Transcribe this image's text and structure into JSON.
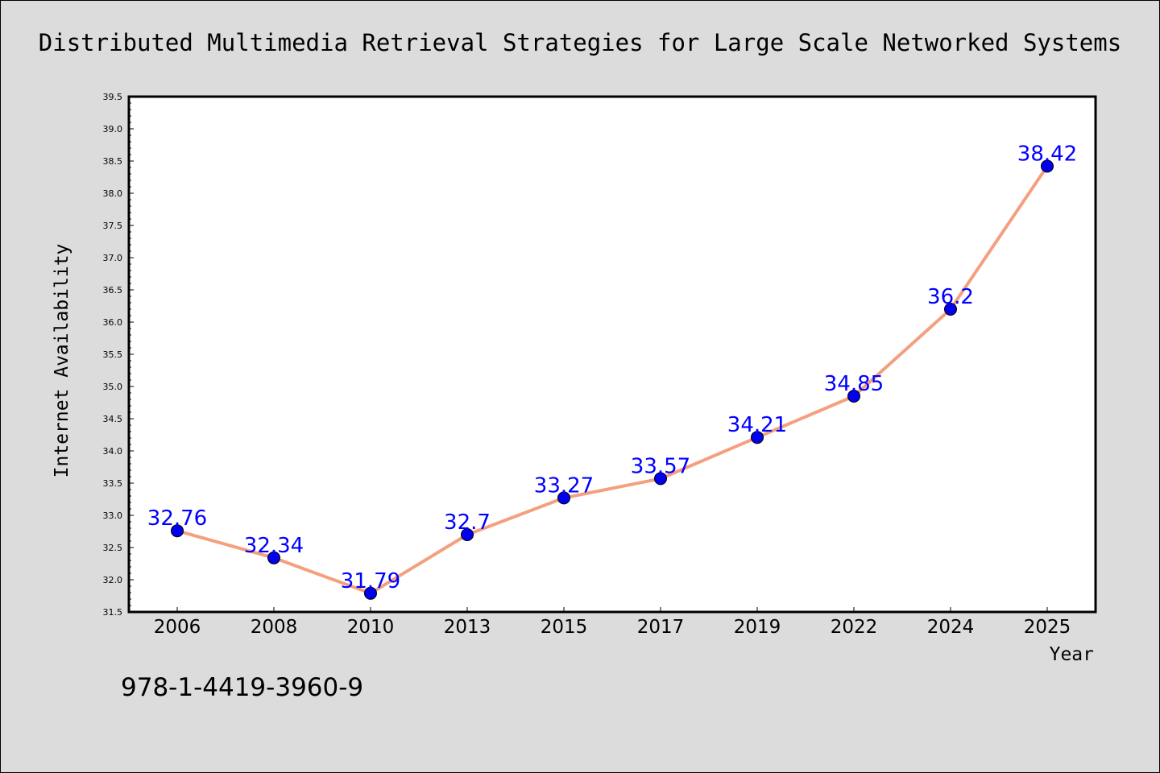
{
  "isbn_text": "978-1-4419-3960-9",
  "colors": {
    "background": "#dcdcdc",
    "plot_background": "#ffffff",
    "line": "#f4a07f",
    "marker": "#0000ee",
    "data_label": "#0000ff"
  },
  "chart_data": {
    "type": "line",
    "title": "Distributed Multimedia Retrieval Strategies for Large Scale Networked Systems",
    "xlabel": "Year",
    "ylabel": "Internet Availability",
    "categories": [
      "2006",
      "2008",
      "2010",
      "2013",
      "2015",
      "2017",
      "2019",
      "2022",
      "2024",
      "2025"
    ],
    "series": [
      {
        "values": [
          32.76,
          32.34,
          31.79,
          32.7,
          33.27,
          33.57,
          34.21,
          34.85,
          36.2,
          38.42
        ],
        "labels": [
          "32.76",
          "32.34",
          "31.79",
          "32.7",
          "33.27",
          "33.57",
          "34.21",
          "34.85",
          "36.2",
          "38.42"
        ]
      }
    ],
    "ylim": [
      31.5,
      39.5
    ],
    "yticks": [
      "31.5",
      "32.0",
      "32.5",
      "33.0",
      "33.5",
      "34.0",
      "34.5",
      "35.0",
      "35.5",
      "36.0",
      "36.5",
      "37.0",
      "37.5",
      "38.0",
      "38.5",
      "39.0",
      "39.5"
    ],
    "grid": false,
    "legend": "none",
    "markers": "circle"
  }
}
